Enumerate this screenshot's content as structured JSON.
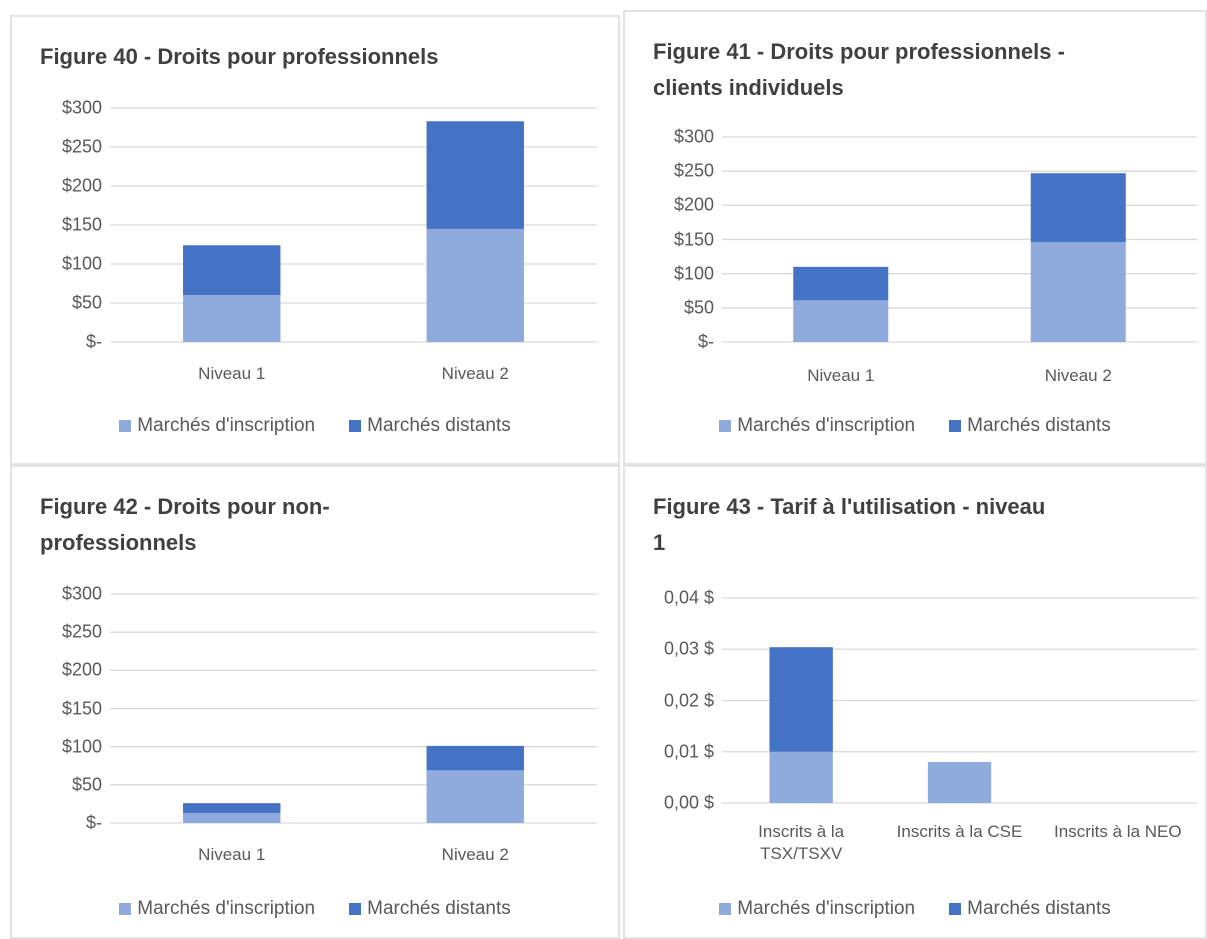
{
  "chart_data": [
    {
      "type": "bar",
      "stacked": true,
      "title": "Figure 40 - Droits pour professionnels",
      "categories": [
        "Niveau 1",
        "Niveau 2"
      ],
      "series": [
        {
          "name": "Marchés d'inscription",
          "color": "#8faadc",
          "values": [
            60,
            145
          ]
        },
        {
          "name": "Marchés distants",
          "color": "#4472c4",
          "values": [
            64,
            138
          ]
        }
      ],
      "ylim": [
        0,
        300
      ],
      "yticks": [
        {
          "value": 0,
          "label": "$-"
        },
        {
          "value": 50,
          "label": "$50"
        },
        {
          "value": 100,
          "label": "$100"
        },
        {
          "value": 150,
          "label": "$150"
        },
        {
          "value": 200,
          "label": "$200"
        },
        {
          "value": 250,
          "label": "$250"
        },
        {
          "value": 300,
          "label": "$300"
        }
      ],
      "grid": true,
      "legend": "bottom"
    },
    {
      "type": "bar",
      "stacked": true,
      "title": "Figure 41 - Droits pour professionnels - clients individuels",
      "categories": [
        "Niveau 1",
        "Niveau 2"
      ],
      "series": [
        {
          "name": "Marchés d'inscription",
          "color": "#8faadc",
          "values": [
            61,
            146
          ]
        },
        {
          "name": "Marchés distants",
          "color": "#4472c4",
          "values": [
            49,
            101
          ]
        }
      ],
      "ylim": [
        0,
        300
      ],
      "yticks": [
        {
          "value": 0,
          "label": "$-"
        },
        {
          "value": 50,
          "label": "$50"
        },
        {
          "value": 100,
          "label": "$100"
        },
        {
          "value": 150,
          "label": "$150"
        },
        {
          "value": 200,
          "label": "$200"
        },
        {
          "value": 250,
          "label": "$250"
        },
        {
          "value": 300,
          "label": "$300"
        }
      ],
      "grid": true,
      "legend": "bottom"
    },
    {
      "type": "bar",
      "stacked": true,
      "title": "Figure 42 - Droits pour non-professionnels",
      "categories": [
        "Niveau 1",
        "Niveau 2"
      ],
      "series": [
        {
          "name": "Marchés d'inscription",
          "color": "#8faadc",
          "values": [
            13,
            69
          ]
        },
        {
          "name": "Marchés distants",
          "color": "#4472c4",
          "values": [
            13,
            32
          ]
        }
      ],
      "ylim": [
        0,
        300
      ],
      "yticks": [
        {
          "value": 0,
          "label": "$-"
        },
        {
          "value": 50,
          "label": "$50"
        },
        {
          "value": 100,
          "label": "$100"
        },
        {
          "value": 150,
          "label": "$150"
        },
        {
          "value": 200,
          "label": "$200"
        },
        {
          "value": 250,
          "label": "$250"
        },
        {
          "value": 300,
          "label": "$300"
        }
      ],
      "grid": true,
      "legend": "bottom"
    },
    {
      "type": "bar",
      "stacked": true,
      "title": "Figure 43 - Tarif à l'utilisation - niveau 1",
      "categories": [
        "Inscrits à la TSX/TSXV",
        "Inscrits à la CSE",
        "Inscrits à la NEO"
      ],
      "series": [
        {
          "name": "Marchés d'inscription",
          "color": "#8faadc",
          "values": [
            0.01,
            0.008,
            0
          ]
        },
        {
          "name": "Marchés distants",
          "color": "#4472c4",
          "values": [
            0.0204,
            0,
            0
          ]
        }
      ],
      "ylim": [
        0,
        0.04
      ],
      "yticks": [
        {
          "value": 0,
          "label": "0,00 $"
        },
        {
          "value": 0.01,
          "label": "0,01 $"
        },
        {
          "value": 0.02,
          "label": "0,02 $"
        },
        {
          "value": 0.03,
          "label": "0,03 $"
        },
        {
          "value": 0.04,
          "label": "0,04 $"
        }
      ],
      "grid": true,
      "legend": "bottom"
    }
  ]
}
